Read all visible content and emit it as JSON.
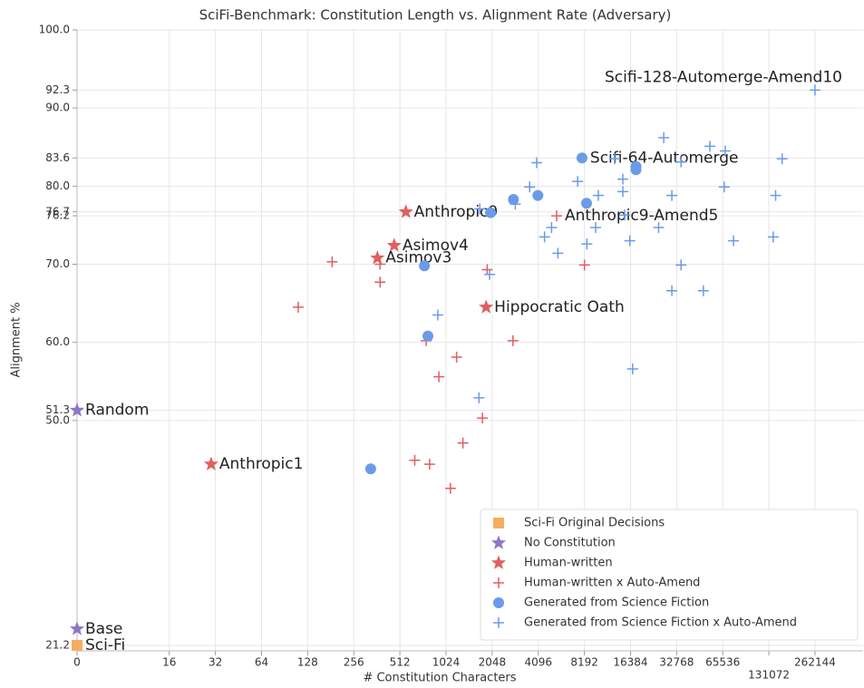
{
  "chart_data": {
    "type": "scatter",
    "title": "SciFi-Benchmark: Constitution Length vs. Alignment Rate (Adversary)",
    "xlabel": "# Constitution Characters",
    "ylabel": "Alignment %",
    "xscale": "symlog",
    "linthresh": 8,
    "xlim": [
      0,
      540000
    ],
    "ylim": [
      20.5,
      100
    ],
    "xticks": [
      0,
      16,
      32,
      64,
      128,
      256,
      512,
      1024,
      2048,
      4096,
      8192,
      16384,
      32768,
      65536,
      131072,
      262144
    ],
    "yticks": [
      21.2,
      {
        "value": 50,
        "label": "50.0"
      },
      51.3,
      {
        "value": 60,
        "label": "60.0"
      },
      {
        "value": 70,
        "label": "70.0"
      },
      76.2,
      76.7,
      {
        "value": 80,
        "label": "80.0"
      },
      83.6,
      {
        "value": 90,
        "label": "90.0"
      },
      92.3,
      {
        "value": 100,
        "label": "100.0"
      }
    ],
    "grid": true,
    "legend": "lower right",
    "series": [
      {
        "name": "Sci-Fi Original Decisions",
        "color": "#f5ae5f",
        "marker": "square",
        "x": [
          0
        ],
        "values": [
          21.2
        ],
        "labels": [
          "Sci-Fi"
        ]
      },
      {
        "name": "No Constitution",
        "color": "#8c78c4",
        "marker": "star",
        "x": [
          0,
          0
        ],
        "values": [
          51.3,
          23.3
        ],
        "labels": [
          "Random",
          "Base"
        ]
      },
      {
        "name": "Human-written",
        "color": "#e06060",
        "marker": "star",
        "x": [
          30,
          560,
          470,
          365,
          1870
        ],
        "values": [
          44.4,
          76.7,
          72.4,
          70.8,
          64.5
        ],
        "labels": [
          "Anthropic1",
          "Anthropic9",
          "Asimov4",
          "Asimov3",
          "Hippocratic Oath"
        ]
      },
      {
        "name": "Human-written x Auto-Amend",
        "color": "#e06060",
        "marker": "plus",
        "x": [
          111,
          185,
          380,
          380,
          760,
          920,
          1200,
          640,
          800,
          1095,
          1320,
          1770,
          1900,
          2800,
          5400,
          8200
        ],
        "values": [
          64.5,
          70.3,
          70,
          67.7,
          60.2,
          55.6,
          58.1,
          44.9,
          44.4,
          41.3,
          47.1,
          50.3,
          69.3,
          60.2,
          76.2,
          69.9
        ],
        "labels": [
          null,
          null,
          null,
          null,
          null,
          null,
          null,
          null,
          null,
          null,
          null,
          null,
          null,
          null,
          "Anthropic9-Amend5",
          null
        ]
      },
      {
        "name": "Generated from Science Fiction",
        "color": "#6b9be8",
        "marker": "circle",
        "x": [
          330,
          740,
          780,
          2000,
          2820,
          4070,
          7900,
          8460,
          17800,
          17800
        ],
        "values": [
          43.8,
          69.8,
          60.8,
          76.6,
          78.3,
          78.8,
          83.6,
          77.8,
          82.5,
          82.1
        ],
        "labels": [
          null,
          null,
          null,
          null,
          null,
          null,
          "Scifi-64-Automerge",
          null,
          null,
          null
        ]
      },
      {
        "name": "Generated from Science Fiction x Auto-Amend",
        "color": "#6b9be8",
        "marker": "plus",
        "x": [
          1700,
          1970,
          905,
          1680,
          2900,
          3600,
          4000,
          4500,
          5000,
          5500,
          7400,
          8500,
          9700,
          10100,
          14600,
          14600,
          15000,
          16200,
          16900,
          25000,
          27000,
          30500,
          30500,
          35000,
          35000,
          49000,
          54000,
          68000,
          67000,
          77000,
          140000,
          145000,
          160000,
          12900,
          262144
        ],
        "values": [
          77.1,
          68.7,
          63.5,
          52.9,
          77.7,
          79.9,
          83,
          73.5,
          74.7,
          71.4,
          80.6,
          72.6,
          74.7,
          78.8,
          80.9,
          79.3,
          76.3,
          73,
          56.6,
          74.7,
          86.2,
          78.8,
          66.6,
          69.9,
          83.1,
          66.6,
          85.1,
          84.5,
          79.9,
          73,
          73.5,
          78.8,
          83.5,
          83.5,
          92.3
        ],
        "labels": [
          null,
          null,
          null,
          null,
          null,
          null,
          null,
          null,
          null,
          null,
          null,
          null,
          null,
          null,
          null,
          null,
          null,
          null,
          null,
          null,
          null,
          null,
          null,
          null,
          null,
          null,
          null,
          null,
          null,
          null,
          null,
          null,
          null,
          null,
          "Scifi-128-Automerge-Amend10"
        ]
      }
    ]
  }
}
